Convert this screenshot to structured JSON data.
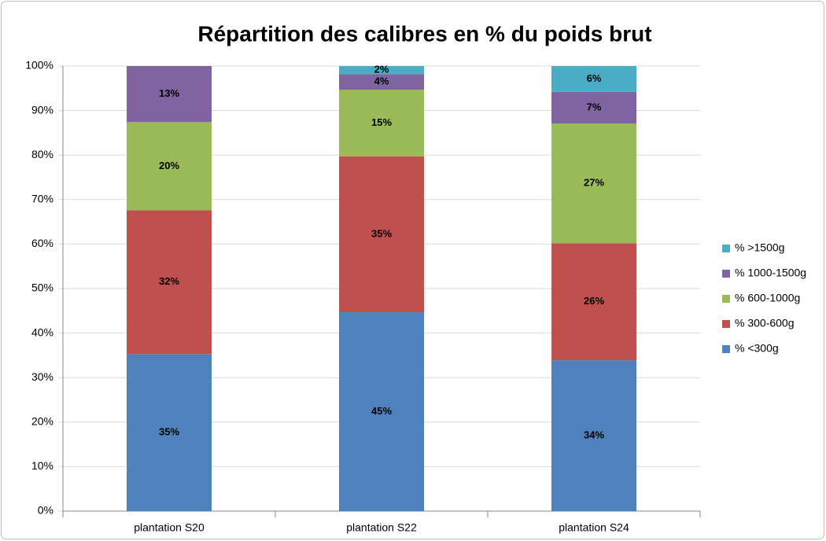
{
  "chart_data": {
    "type": "stacked_bar",
    "title": "Répartition des calibres en % du poids brut",
    "categories": [
      "plantation S20",
      "plantation S22",
      "plantation S24"
    ],
    "series": [
      {
        "name": "% <300g",
        "color": "#4f81bd",
        "values": [
          35.3,
          44.7,
          33.9
        ],
        "value_labels": [
          "35%",
          "45%",
          "34%"
        ]
      },
      {
        "name": "% 300-600g",
        "color": "#c0504d",
        "values": [
          32.3,
          35.0,
          26.3
        ],
        "value_labels": [
          "32%",
          "35%",
          "26%"
        ]
      },
      {
        "name": "% 600-1000g",
        "color": "#9bbb59",
        "values": [
          19.8,
          15.0,
          26.9
        ],
        "value_labels": [
          "20%",
          "15%",
          "27%"
        ]
      },
      {
        "name": "% 1000-1500g",
        "color": "#8064a2",
        "values": [
          12.6,
          3.5,
          7.1
        ],
        "value_labels": [
          "13%",
          "4%",
          "7%"
        ]
      },
      {
        "name": "% >1500g",
        "color": "#4bacc6",
        "values": [
          0,
          1.8,
          5.8
        ],
        "value_labels": [
          null,
          "2%",
          "6%"
        ]
      }
    ],
    "ylim": [
      0,
      100
    ],
    "yticks": [
      {
        "value": 0,
        "label": "0%"
      },
      {
        "value": 10,
        "label": "10%"
      },
      {
        "value": 20,
        "label": "20%"
      },
      {
        "value": 30,
        "label": "30%"
      },
      {
        "value": 40,
        "label": "40%"
      },
      {
        "value": 50,
        "label": "50%"
      },
      {
        "value": 60,
        "label": "60%"
      },
      {
        "value": 70,
        "label": "70%"
      },
      {
        "value": 80,
        "label": "80%"
      },
      {
        "value": 90,
        "label": "90%"
      },
      {
        "value": 100,
        "label": "100%"
      }
    ],
    "grid": true,
    "legend": "right"
  }
}
